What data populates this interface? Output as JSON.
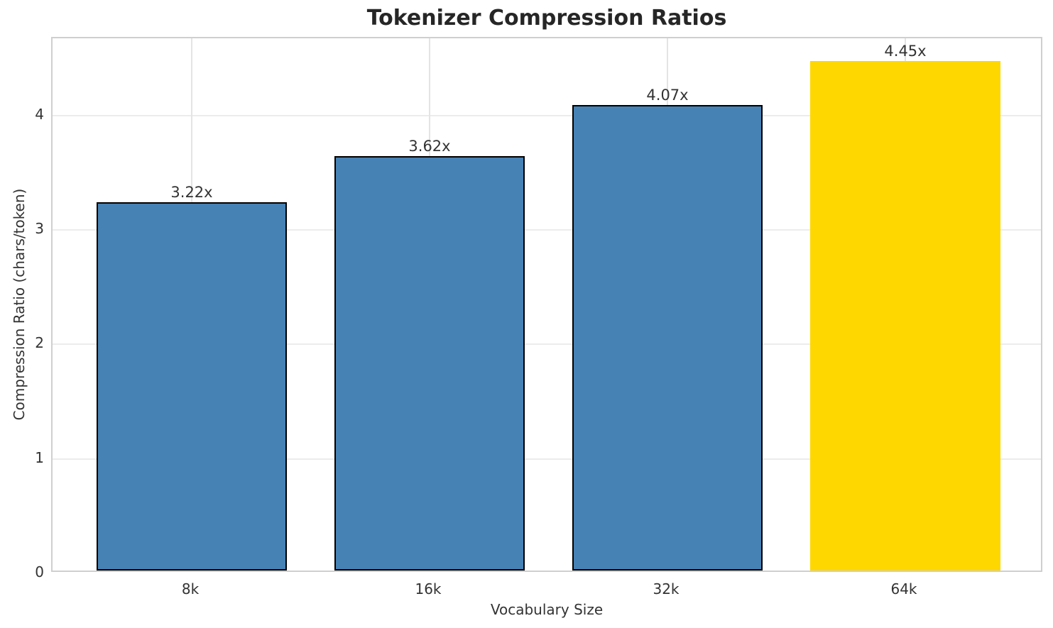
{
  "chart_data": {
    "type": "bar",
    "title": "Tokenizer Compression Ratios",
    "xlabel": "Vocabulary Size",
    "ylabel": "Compression Ratio (chars/token)",
    "categories": [
      "8k",
      "16k",
      "32k",
      "64k"
    ],
    "values": [
      3.22,
      3.62,
      4.07,
      4.45
    ],
    "bar_labels": [
      "3.22x",
      "3.62x",
      "4.07x",
      "4.45x"
    ],
    "bar_colors": [
      "#4682b4",
      "#4682b4",
      "#4682b4",
      "#ffd700"
    ],
    "bar_edge_colors": [
      "#000000",
      "#000000",
      "#000000",
      "none"
    ],
    "yticks": [
      0,
      1,
      2,
      3,
      4
    ],
    "ylim": [
      0,
      4.675
    ],
    "grid": true,
    "legend_position": "none",
    "highlight_note": "64k bar shown in gold, others in steel blue"
  },
  "style_colors": {
    "bar_fill": "#4682b4",
    "bar_highlight_fill": "#ffd700",
    "bar_edge": "#000000",
    "spine": "#cfcfcf",
    "grid": "#ececec",
    "title_text": "#262626",
    "label_text": "#333333",
    "background": "#ffffff"
  }
}
